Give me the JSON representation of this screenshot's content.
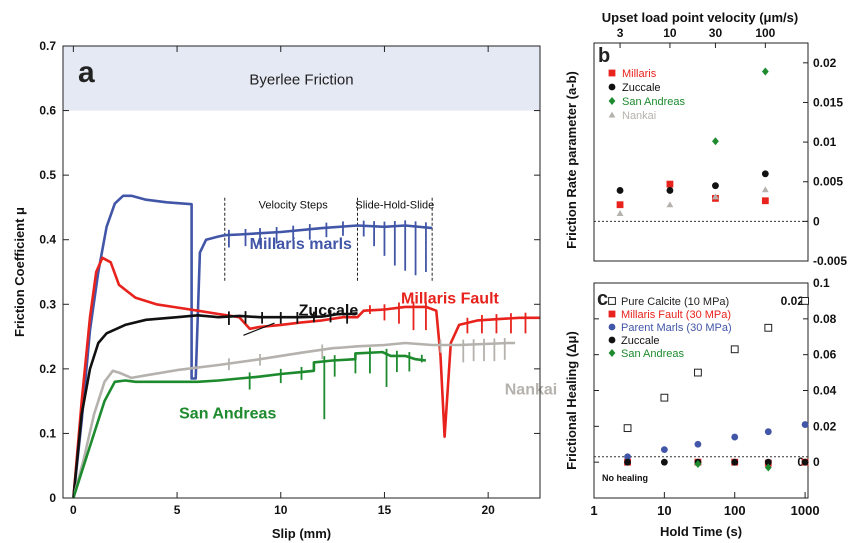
{
  "chart_data": [
    {
      "type": "line",
      "panel_letter": "a",
      "xlabel": "Slip (mm)",
      "ylabel": "Friction Coefficient μ",
      "xlim": [
        -0.5,
        22.5
      ],
      "ylim": [
        0,
        0.7
      ],
      "xticks": [
        0,
        5,
        10,
        15,
        20
      ],
      "yticks": [
        0,
        0.1,
        0.2,
        0.3,
        0.4,
        0.5,
        0.6,
        0.7
      ],
      "band": {
        "label": "Byerlee Friction",
        "y_from": 0.6,
        "y_to": 0.7,
        "color": "#e5e9f4"
      },
      "annotations": [
        {
          "text": "Velocity Steps",
          "x": 10.6,
          "y": 0.448
        },
        {
          "text": "Slide-Hold-Slide",
          "x": 15.5,
          "y": 0.448
        },
        {
          "text": "Zuccale",
          "x": 12.3,
          "y": 0.283,
          "pointer_to": [
            8.2,
            0.252
          ]
        }
      ],
      "vlines": [
        7.3,
        13.7,
        17.3
      ],
      "series": [
        {
          "name": "Millaris marls",
          "color": "#4256a8",
          "label_x": 8.5,
          "label_y": 0.386,
          "points": [
            [
              0,
              0
            ],
            [
              0.4,
              0.12
            ],
            [
              0.8,
              0.26
            ],
            [
              1.2,
              0.35
            ],
            [
              1.6,
              0.42
            ],
            [
              2,
              0.456
            ],
            [
              2.4,
              0.468
            ],
            [
              2.8,
              0.468
            ],
            [
              3.5,
              0.462
            ],
            [
              4.5,
              0.458
            ],
            [
              5.7,
              0.455
            ],
            [
              5.7,
              0.185
            ],
            [
              5.9,
              0.185
            ],
            [
              6.1,
              0.38
            ],
            [
              6.4,
              0.4
            ],
            [
              7,
              0.405
            ],
            [
              7.3,
              0.407
            ],
            [
              8,
              0.408
            ],
            [
              10,
              0.412
            ],
            [
              12,
              0.418
            ],
            [
              13.7,
              0.422
            ],
            [
              15,
              0.42
            ],
            [
              16,
              0.422
            ],
            [
              17.3,
              0.418
            ]
          ],
          "spikes": [
            [
              7.5,
              0.388
            ],
            [
              8.3,
              0.39
            ],
            [
              9,
              0.392
            ],
            [
              9.8,
              0.394
            ],
            [
              10.6,
              0.398
            ],
            [
              11.4,
              0.4
            ],
            [
              12.2,
              0.404
            ],
            [
              13,
              0.406
            ],
            [
              14,
              0.405
            ],
            [
              14.5,
              0.39
            ],
            [
              15,
              0.375
            ],
            [
              15.5,
              0.36
            ],
            [
              16,
              0.352
            ],
            [
              16.5,
              0.345
            ],
            [
              17,
              0.35
            ]
          ]
        },
        {
          "name": "Millaris Fault",
          "color": "#e8221c",
          "label_x": 15.8,
          "label_y": 0.301,
          "points": [
            [
              0,
              0
            ],
            [
              0.4,
              0.15
            ],
            [
              0.8,
              0.28
            ],
            [
              1.1,
              0.35
            ],
            [
              1.4,
              0.372
            ],
            [
              1.8,
              0.365
            ],
            [
              2.2,
              0.33
            ],
            [
              2.6,
              0.32
            ],
            [
              3,
              0.31
            ],
            [
              4,
              0.3
            ],
            [
              5,
              0.295
            ],
            [
              6,
              0.29
            ],
            [
              7,
              0.285
            ],
            [
              8,
              0.28
            ],
            [
              8.5,
              0.262
            ],
            [
              9,
              0.265
            ],
            [
              10,
              0.268
            ],
            [
              11,
              0.272
            ],
            [
              12,
              0.275
            ],
            [
              13,
              0.28
            ],
            [
              13.7,
              0.28
            ],
            [
              14,
              0.29
            ],
            [
              15,
              0.292
            ],
            [
              16,
              0.296
            ],
            [
              17,
              0.296
            ],
            [
              17.5,
              0.29
            ],
            [
              17.7,
              0.22
            ],
            [
              17.9,
              0.095
            ],
            [
              18.2,
              0.24
            ],
            [
              18.6,
              0.268
            ],
            [
              19.5,
              0.275
            ],
            [
              20.5,
              0.277
            ],
            [
              21.5,
              0.279
            ],
            [
              22.5,
              0.279
            ]
          ],
          "spikes": [
            [
              14.3,
              0.285
            ],
            [
              15,
              0.275
            ],
            [
              15.7,
              0.27
            ],
            [
              16.4,
              0.26
            ],
            [
              17,
              0.26
            ],
            [
              19,
              0.255
            ],
            [
              19.7,
              0.255
            ],
            [
              20.4,
              0.255
            ],
            [
              21.1,
              0.255
            ],
            [
              21.8,
              0.255
            ]
          ]
        },
        {
          "name": "Zuccale",
          "color": "#111111",
          "points": [
            [
              0,
              0
            ],
            [
              0.4,
              0.13
            ],
            [
              0.8,
              0.2
            ],
            [
              1.2,
              0.24
            ],
            [
              1.6,
              0.255
            ],
            [
              2.5,
              0.268
            ],
            [
              3.5,
              0.276
            ],
            [
              5,
              0.28
            ],
            [
              6,
              0.283
            ],
            [
              7,
              0.28
            ],
            [
              8,
              0.282
            ],
            [
              9,
              0.28
            ],
            [
              10,
              0.28
            ],
            [
              11,
              0.28
            ],
            [
              12,
              0.281
            ],
            [
              12.8,
              0.285
            ],
            [
              13.3,
              0.285
            ],
            [
              13.7,
              0.286
            ]
          ],
          "spikes": [
            [
              7.5,
              0.268
            ],
            [
              8.3,
              0.27
            ],
            [
              9.1,
              0.27
            ],
            [
              10,
              0.27
            ],
            [
              10.8,
              0.27
            ],
            [
              11.6,
              0.272
            ],
            [
              12.4,
              0.272
            ],
            [
              13.2,
              0.27
            ]
          ]
        },
        {
          "name": "Nankai",
          "color": "#b5b2ad",
          "label_x": 20.8,
          "label_y": 0.16,
          "points": [
            [
              0,
              0
            ],
            [
              0.5,
              0.06
            ],
            [
              1,
              0.13
            ],
            [
              1.5,
              0.18
            ],
            [
              1.9,
              0.197
            ],
            [
              2.3,
              0.193
            ],
            [
              2.8,
              0.186
            ],
            [
              3.5,
              0.19
            ],
            [
              5,
              0.198
            ],
            [
              7,
              0.206
            ],
            [
              9,
              0.215
            ],
            [
              11,
              0.225
            ],
            [
              12.5,
              0.232
            ],
            [
              13,
              0.233
            ],
            [
              13.7,
              0.235
            ],
            [
              15,
              0.237
            ],
            [
              16,
              0.24
            ],
            [
              17.3,
              0.237
            ],
            [
              18.6,
              0.237
            ],
            [
              21,
              0.24
            ],
            [
              21.3,
              0.24
            ]
          ],
          "spikes": [
            [
              7.5,
              0.198
            ],
            [
              9,
              0.205
            ],
            [
              12,
              0.215
            ],
            [
              17.7,
              0.225
            ],
            [
              18.8,
              0.21
            ],
            [
              19.3,
              0.212
            ],
            [
              19.8,
              0.212
            ],
            [
              20.3,
              0.212
            ],
            [
              20.8,
              0.214
            ]
          ]
        },
        {
          "name": "San Andreas",
          "color": "#1c8a2d",
          "label_x": 5.1,
          "label_y": 0.123,
          "points": [
            [
              0,
              0
            ],
            [
              0.5,
              0.05
            ],
            [
              1,
              0.1
            ],
            [
              1.5,
              0.15
            ],
            [
              2,
              0.18
            ],
            [
              2.5,
              0.182
            ],
            [
              3,
              0.18
            ],
            [
              4,
              0.18
            ],
            [
              5,
              0.18
            ],
            [
              6,
              0.18
            ],
            [
              7,
              0.182
            ],
            [
              8,
              0.185
            ],
            [
              9,
              0.188
            ],
            [
              10,
              0.192
            ],
            [
              11,
              0.195
            ],
            [
              11.6,
              0.197
            ],
            [
              11.6,
              0.21
            ],
            [
              12.5,
              0.213
            ],
            [
              13.6,
              0.215
            ],
            [
              13.6,
              0.224
            ],
            [
              14.9,
              0.226
            ],
            [
              15.3,
              0.22
            ],
            [
              16,
              0.22
            ],
            [
              16.5,
              0.215
            ],
            [
              17,
              0.213
            ]
          ],
          "spikes": [
            [
              8.5,
              0.168
            ],
            [
              10,
              0.178
            ],
            [
              11,
              0.183
            ],
            [
              12.1,
              0.122
            ],
            [
              12.6,
              0.188
            ],
            [
              13.6,
              0.193
            ],
            [
              14.3,
              0.193
            ],
            [
              15.1,
              0.172
            ],
            [
              15.6,
              0.195
            ],
            [
              16.2,
              0.196
            ],
            [
              16.8,
              0.21
            ]
          ]
        }
      ]
    },
    {
      "type": "scatter",
      "panel_letter": "b",
      "ylabel": "Friction Rate parameter (a-b)",
      "x_axis_title": "Upset load point velocity (μm/s)",
      "x_scale": "log",
      "xlim": [
        1.6,
        280
      ],
      "ylim": [
        -0.005,
        0.0225
      ],
      "top_xticks": [
        3,
        10,
        30,
        100
      ],
      "yticks": [
        -0.005,
        0,
        0.005,
        0.01,
        0.015,
        0.02
      ],
      "ytick_labels": [
        "-0.005",
        "0",
        "0.005",
        "0.01",
        "0.015",
        "0.02"
      ],
      "zero_line": 0,
      "series": [
        {
          "name": "Millaris",
          "marker": "square",
          "color": "#e8221c",
          "points": [
            [
              3,
              0.0021
            ],
            [
              10,
              0.0047
            ],
            [
              30,
              0.0029
            ],
            [
              100,
              0.0026
            ]
          ]
        },
        {
          "name": "Zuccale",
          "marker": "circle",
          "color": "#111111",
          "points": [
            [
              3,
              0.0039
            ],
            [
              10,
              0.0039
            ],
            [
              30,
              0.0045
            ],
            [
              100,
              0.006
            ]
          ]
        },
        {
          "name": "San Andreas",
          "marker": "diamond",
          "color": "#1c8a2d",
          "points": [
            [
              30,
              0.0101
            ],
            [
              100,
              0.0189
            ]
          ]
        },
        {
          "name": "Nankai",
          "marker": "triangle",
          "color": "#b5b2ad",
          "points": [
            [
              3,
              0.001
            ],
            [
              10,
              0.0021
            ],
            [
              30,
              0.0031
            ],
            [
              100,
              0.004
            ]
          ]
        }
      ]
    },
    {
      "type": "scatter",
      "panel_letter": "c",
      "xlabel": "Hold Time (s)",
      "ylabel": "Frictional Healing (Δμ)",
      "x_scale": "log",
      "xlim": [
        1,
        1100
      ],
      "ylim": [
        -0.02,
        0.1
      ],
      "xticks": [
        1,
        10,
        100,
        1000
      ],
      "xtick_labels": [
        "1",
        "10",
        "100",
        "1000"
      ],
      "yticks": [
        0,
        0.02,
        0.04,
        0.06,
        0.08
      ],
      "yticks_outer": [
        0,
        0.02,
        0.04,
        0.06,
        0.08,
        0.1
      ],
      "ytick_labels_outer": [
        "0",
        "0.02",
        "0.04",
        "0.06",
        "0.08",
        "0.1"
      ],
      "yticks_inner": [
        0,
        0.02
      ],
      "ytick_labels_inner": [
        "0",
        "0.02"
      ],
      "zero_line": 0.003,
      "note": "No healing",
      "series": [
        {
          "name": "Pure Calcite (10 MPa)",
          "marker": "open-square",
          "color": "#222222",
          "points": [
            [
              3,
              0.019
            ],
            [
              10,
              0.036
            ],
            [
              30,
              0.05
            ],
            [
              100,
              0.063
            ],
            [
              300,
              0.075
            ],
            [
              1000,
              0.09
            ]
          ]
        },
        {
          "name": "Millaris Fault (30 MPa)",
          "marker": "square",
          "color": "#e8221c",
          "points": [
            [
              3,
              0.0
            ],
            [
              30,
              0.0
            ],
            [
              100,
              0.0
            ],
            [
              300,
              -0.0005
            ],
            [
              1000,
              0.0
            ]
          ]
        },
        {
          "name": "Parent Marls (30 MPa)",
          "marker": "circle",
          "color": "#4256a8",
          "points": [
            [
              3,
              0.003
            ],
            [
              10,
              0.007
            ],
            [
              30,
              0.01
            ],
            [
              100,
              0.014
            ],
            [
              300,
              0.017
            ],
            [
              1000,
              0.021
            ]
          ]
        },
        {
          "name": "Zuccale",
          "marker": "circle",
          "color": "#111111",
          "points": [
            [
              3,
              0.0
            ],
            [
              10,
              0.0
            ],
            [
              30,
              0.0
            ],
            [
              100,
              0.0
            ],
            [
              300,
              0.0
            ],
            [
              1000,
              0.0
            ]
          ]
        },
        {
          "name": "San Andreas",
          "marker": "diamond",
          "color": "#1c8a2d",
          "points": [
            [
              30,
              -0.001
            ],
            [
              300,
              -0.003
            ]
          ]
        }
      ]
    }
  ]
}
